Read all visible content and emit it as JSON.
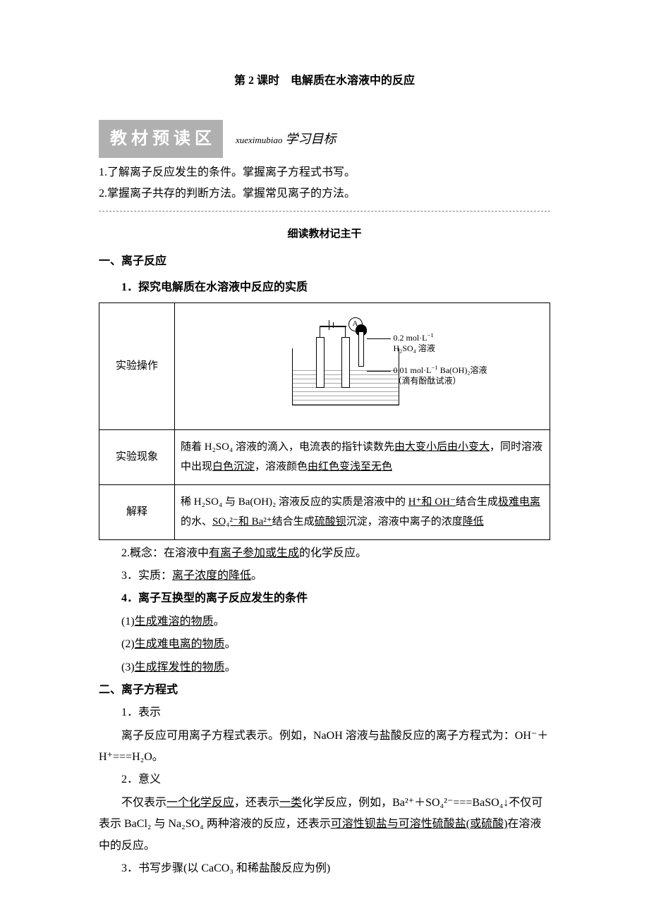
{
  "title": "第 2 课时　电解质在水溶液中的反应",
  "header_badge": "教材预读区",
  "header_pinyin": "xueximubiao",
  "header_label": "学习目标",
  "goals": [
    "1.了解离子反应发生的条件。掌握离子方程式书写。",
    "2.掌握离子共存的判断方法。掌握常见离子的方法。"
  ],
  "section_sub": "细读教材记主干",
  "sec1_title": "一、离子反应",
  "sec1_1": "1．探究电解质在水溶液中反应的实质",
  "table": {
    "row1_label": "实验操作",
    "diagram": {
      "meter": "A",
      "ann1_l1": "0.2 mol·L",
      "ann1_sup": "−1",
      "ann1_l2": "H₂SO₄ 溶液",
      "ann2_l1": "0.01 mol·L",
      "ann2_sup": "−1",
      "ann2_tail": " Ba(OH)₂溶液",
      "ann2_l2": "（滴有酚酞试液）"
    },
    "row2_label": "实验现象",
    "row2_pre": "随着 H₂SO₄ 溶液的滴入，电流表的指针读数先",
    "row2_u1": "由大变小后由小变大",
    "row2_mid": "，同时溶液中出现",
    "row2_u2": "白色沉淀",
    "row2_mid2": "，溶液颜色",
    "row2_u3": "由红色变浅至无色",
    "row3_label": "解释",
    "row3_pre": "稀 H₂SO₄ 与 Ba(OH)₂ 溶液反应的实质是溶液中的 ",
    "row3_u1": "H⁺和 OH⁻",
    "row3_mid1": "结合生成",
    "row3_u2": "极难电离",
    "row3_mid2": "的水、",
    "row3_u3": "SO₄²⁻和 Ba²⁺",
    "row3_mid3": "结合生成",
    "row3_u4": "硫酸钡",
    "row3_mid4": "沉淀，溶液中离子的浓度",
    "row3_u5": "降低"
  },
  "sec1_2_pre": "2.概念：在溶液中",
  "sec1_2_u": "有离子参加或生成",
  "sec1_2_post": "的化学反应。",
  "sec1_3_pre": "3．实质：",
  "sec1_3_u": "离子浓度的降低",
  "sec1_3_post": "。",
  "sec1_4": "4．离子互换型的离子反应发生的条件",
  "cond1_u": "生成难溶的物质",
  "cond2_u": "生成难电离的物质",
  "cond3_u": "生成挥发性的物质",
  "sec2_title": "二、离子方程式",
  "sec2_1_h": "1．表示",
  "sec2_1_body_a": "离子反应可用离子方程式表示。例如，NaOH 溶液与盐酸反应的离子方程式为：OH⁻＋H⁺===H₂O。",
  "sec2_2_h": "2．意义",
  "sec2_2_pre": "不仅表示",
  "sec2_2_u1": "一个化学反应",
  "sec2_2_mid1": "，还表示",
  "sec2_2_u2": "一类",
  "sec2_2_mid2": "化学反应，例如，Ba²⁺＋SO₄²⁻===BaSO₄↓不仅可表示 BaCl₂ 与 Na₂SO₄ 两种溶液的反应，还表示",
  "sec2_2_u3": "可溶性钡盐与可溶性硫酸盐(或硫酸)",
  "sec2_2_post": "在溶液中的反应。",
  "sec2_3": "3．书写步骤(以 CaCO₃ 和稀盐酸反应为例)"
}
